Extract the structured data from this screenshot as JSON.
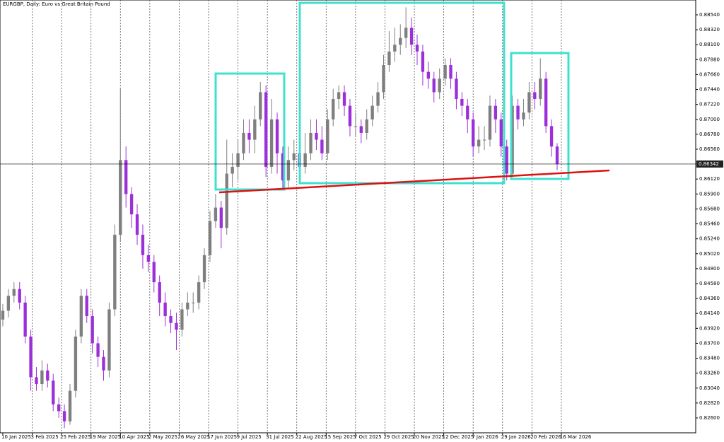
{
  "chart_data": {
    "type": "candlestick",
    "title": "EURGBP, Daily: Euro vs Great Britain Pound",
    "up_color": "#7f7f7f",
    "down_color": "#9b30d9",
    "open": [
      0.8405,
      0.8418,
      0.844,
      0.845,
      0.843,
      0.838,
      0.832,
      0.831,
      0.833,
      0.8315,
      0.828,
      0.827,
      0.8255,
      0.83,
      0.838,
      0.844,
      0.841,
      0.837,
      0.835,
      0.833,
      0.842,
      0.853,
      0.864,
      0.859,
      0.856,
      0.853,
      0.85,
      0.849,
      0.846,
      0.843,
      0.841,
      0.84,
      0.839,
      0.842,
      0.843,
      0.843,
      0.846,
      0.85,
      0.855,
      0.857,
      0.854,
      0.862,
      0.863,
      0.865,
      0.868,
      0.867,
      0.87,
      0.874,
      0.863,
      0.87,
      0.865,
      0.861,
      0.864,
      0.865,
      0.863,
      0.865,
      0.868,
      0.867,
      0.865,
      0.87,
      0.873,
      0.874,
      0.872,
      0.869,
      0.869,
      0.868,
      0.87,
      0.872,
      0.874,
      0.878,
      0.88,
      0.881,
      0.882,
      0.8835,
      0.881,
      0.88,
      0.877,
      0.876,
      0.874,
      0.876,
      0.878,
      0.876,
      0.873,
      0.872,
      0.87,
      0.866,
      0.867,
      0.867,
      0.872,
      0.87,
      0.866,
      0.862,
      0.872,
      0.87,
      0.871,
      0.874,
      0.873,
      0.876,
      0.869,
      0.866
    ],
    "high": [
      0.8428,
      0.845,
      0.846,
      0.846,
      0.844,
      0.839,
      0.8335,
      0.8345,
      0.834,
      0.8325,
      0.829,
      0.828,
      0.831,
      0.839,
      0.845,
      0.845,
      0.842,
      0.838,
      0.836,
      0.843,
      0.8545,
      0.8745,
      0.866,
      0.86,
      0.8575,
      0.8545,
      0.8515,
      0.85,
      0.847,
      0.8445,
      0.842,
      0.8415,
      0.843,
      0.8445,
      0.8445,
      0.847,
      0.851,
      0.8565,
      0.859,
      0.858,
      0.867,
      0.865,
      0.867,
      0.87,
      0.87,
      0.872,
      0.8755,
      0.875,
      0.873,
      0.871,
      0.866,
      0.866,
      0.867,
      0.866,
      0.868,
      0.87,
      0.87,
      0.869,
      0.8715,
      0.8745,
      0.875,
      0.875,
      0.873,
      0.871,
      0.87,
      0.8715,
      0.8735,
      0.8755,
      0.8795,
      0.883,
      0.8835,
      0.884,
      0.8865,
      0.885,
      0.8825,
      0.881,
      0.8785,
      0.877,
      0.8775,
      0.879,
      0.879,
      0.877,
      0.874,
      0.873,
      0.871,
      0.869,
      0.869,
      0.8735,
      0.873,
      0.871,
      0.867,
      0.8735,
      0.873,
      0.873,
      0.8755,
      0.8755,
      0.879,
      0.877,
      0.87,
      0.8665
    ],
    "low": [
      0.8395,
      0.8408,
      0.843,
      0.842,
      0.837,
      0.83,
      0.83,
      0.83,
      0.8305,
      0.827,
      0.826,
      0.8245,
      0.825,
      0.829,
      0.837,
      0.84,
      0.8355,
      0.8335,
      0.8315,
      0.832,
      0.841,
      0.852,
      0.857,
      0.854,
      0.8515,
      0.848,
      0.8475,
      0.8445,
      0.841,
      0.8395,
      0.8385,
      0.836,
      0.838,
      0.841,
      0.8415,
      0.842,
      0.845,
      0.849,
      0.854,
      0.851,
      0.853,
      0.86,
      0.861,
      0.864,
      0.865,
      0.865,
      0.869,
      0.8615,
      0.862,
      0.862,
      0.8595,
      0.86,
      0.8625,
      0.861,
      0.862,
      0.864,
      0.8655,
      0.864,
      0.864,
      0.869,
      0.8715,
      0.8705,
      0.8675,
      0.8675,
      0.8665,
      0.867,
      0.869,
      0.871,
      0.873,
      0.877,
      0.8785,
      0.8795,
      0.8805,
      0.8795,
      0.878,
      0.875,
      0.8745,
      0.8725,
      0.873,
      0.875,
      0.8745,
      0.8715,
      0.8705,
      0.868,
      0.8645,
      0.865,
      0.8655,
      0.866,
      0.868,
      0.8645,
      0.861,
      0.8615,
      0.8685,
      0.869,
      0.87,
      0.8715,
      0.872,
      0.868,
      0.8645,
      0.8625
    ],
    "close": [
      0.8418,
      0.844,
      0.845,
      0.843,
      0.838,
      0.832,
      0.831,
      0.833,
      0.8315,
      0.828,
      0.827,
      0.8255,
      0.83,
      0.838,
      0.844,
      0.841,
      0.837,
      0.835,
      0.833,
      0.842,
      0.853,
      0.864,
      0.859,
      0.856,
      0.853,
      0.85,
      0.849,
      0.846,
      0.843,
      0.841,
      0.84,
      0.839,
      0.842,
      0.843,
      0.843,
      0.846,
      0.85,
      0.855,
      0.857,
      0.854,
      0.862,
      0.863,
      0.865,
      0.868,
      0.867,
      0.87,
      0.874,
      0.863,
      0.87,
      0.865,
      0.861,
      0.864,
      0.865,
      0.863,
      0.865,
      0.868,
      0.867,
      0.865,
      0.87,
      0.873,
      0.874,
      0.872,
      0.869,
      0.869,
      0.868,
      0.87,
      0.872,
      0.874,
      0.878,
      0.88,
      0.881,
      0.882,
      0.8835,
      0.881,
      0.88,
      0.877,
      0.876,
      0.874,
      0.876,
      0.878,
      0.876,
      0.873,
      0.872,
      0.87,
      0.866,
      0.867,
      0.867,
      0.872,
      0.87,
      0.866,
      0.862,
      0.872,
      0.87,
      0.871,
      0.874,
      0.873,
      0.876,
      0.869,
      0.866,
      0.8634
    ],
    "xlim": [
      -0.5,
      123.75
    ],
    "xticks": [
      {
        "value": 0,
        "label": "10 Jan 2025"
      },
      {
        "value": 5.25,
        "label": "3 Feb 2025"
      },
      {
        "value": 10.5,
        "label": "25 Feb 2025"
      },
      {
        "value": 15.75,
        "label": "19 Mar 2025"
      },
      {
        "value": 21,
        "label": "10 Apr 2025"
      },
      {
        "value": 26.25,
        "label": "2 May 2025"
      },
      {
        "value": 31.5,
        "label": "26 May 2025"
      },
      {
        "value": 36.75,
        "label": "17 Jun 2025"
      },
      {
        "value": 42,
        "label": "9 Jul 2025"
      },
      {
        "value": 47.25,
        "label": "31 Jul 2025"
      },
      {
        "value": 52.5,
        "label": "22 Aug 2025"
      },
      {
        "value": 57.75,
        "label": "15 Sep 2025"
      },
      {
        "value": 63,
        "label": "7 Oct 2025"
      },
      {
        "value": 68.25,
        "label": "29 Oct 2025"
      },
      {
        "value": 73.5,
        "label": "20 Nov 2025"
      },
      {
        "value": 78.75,
        "label": "12 Dec 2025"
      },
      {
        "value": 84,
        "label": "7 Jan 2026"
      },
      {
        "value": 89.25,
        "label": "29 Jan 2026"
      },
      {
        "value": 94.5,
        "label": "20 Feb 2026"
      },
      {
        "value": 99.75,
        "label": "16 Mar 2026"
      }
    ],
    "ylim": [
      0.82381,
      0.88759
    ],
    "yticks": [
      {
        "value": 0.8854,
        "label": "0.88540"
      },
      {
        "value": 0.8832,
        "label": "0.88320"
      },
      {
        "value": 0.881,
        "label": "0.88100"
      },
      {
        "value": 0.8788,
        "label": "0.87880"
      },
      {
        "value": 0.8766,
        "label": "0.87660"
      },
      {
        "value": 0.8744,
        "label": "0.87440"
      },
      {
        "value": 0.8722,
        "label": "0.87220"
      },
      {
        "value": 0.87,
        "label": "0.87000"
      },
      {
        "value": 0.8678,
        "label": "0.86780"
      },
      {
        "value": 0.8656,
        "label": "0.86560"
      },
      {
        "value": 0.8612,
        "label": "0.86120"
      },
      {
        "value": 0.859,
        "label": "0.85900"
      },
      {
        "value": 0.8568,
        "label": "0.85680"
      },
      {
        "value": 0.8546,
        "label": "0.85460"
      },
      {
        "value": 0.8524,
        "label": "0.85240"
      },
      {
        "value": 0.8502,
        "label": "0.85020"
      },
      {
        "value": 0.848,
        "label": "0.84800"
      },
      {
        "value": 0.8458,
        "label": "0.84580"
      },
      {
        "value": 0.8436,
        "label": "0.84360"
      },
      {
        "value": 0.8414,
        "label": "0.84140"
      },
      {
        "value": 0.8392,
        "label": "0.83920"
      },
      {
        "value": 0.837,
        "label": "0.83700"
      },
      {
        "value": 0.8348,
        "label": "0.83480"
      },
      {
        "value": 0.8326,
        "label": "0.83260"
      },
      {
        "value": 0.8304,
        "label": "0.83040"
      },
      {
        "value": 0.8282,
        "label": "0.82820"
      },
      {
        "value": 0.826,
        "label": "0.82600"
      }
    ],
    "current_price": {
      "value": 0.86342,
      "label": "0.86342"
    }
  }
}
